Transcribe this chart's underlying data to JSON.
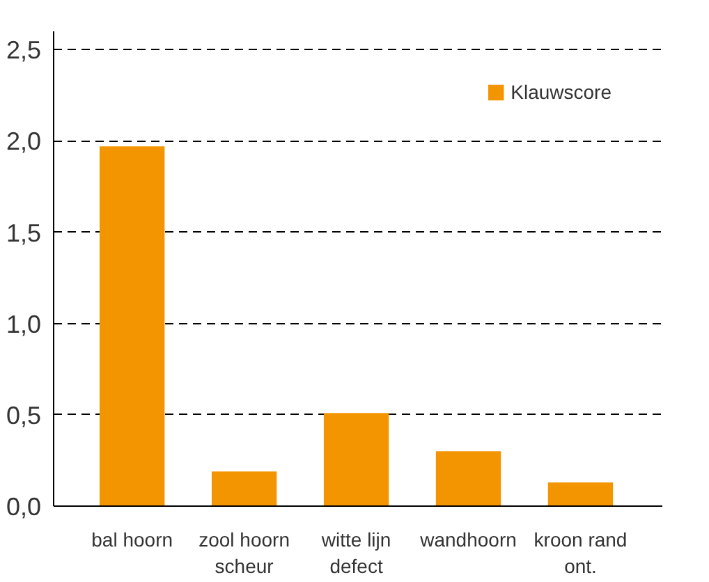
{
  "chart_data": {
    "type": "bar",
    "categories": [
      "bal hoorn",
      "zool hoorn\nscheur",
      "witte lijn\ndefect",
      "wandhoorn",
      "kroon rand\nont."
    ],
    "series": [
      {
        "name": "Klauwscore",
        "color": "#f39500",
        "values": [
          1.97,
          0.19,
          0.51,
          0.3,
          0.13
        ]
      }
    ],
    "ylim": [
      0,
      2.6
    ],
    "yticks": [
      {
        "value": 0,
        "label": "0,0"
      },
      {
        "value": 0.5,
        "label": "0,5"
      },
      {
        "value": 1.0,
        "label": "1,0"
      },
      {
        "value": 1.5,
        "label": "1,5"
      },
      {
        "value": 2.0,
        "label": "2,0"
      },
      {
        "value": 2.5,
        "label": "2,5"
      }
    ],
    "grid": "y",
    "legend": "top right"
  }
}
